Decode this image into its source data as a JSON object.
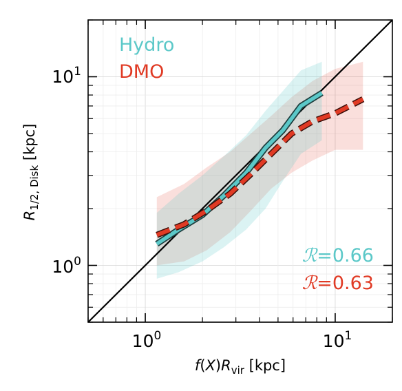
{
  "chart_data": {
    "type": "line",
    "xlabel": {
      "func": "f",
      "arg": "X",
      "sym": "R",
      "sub": "vir",
      "unit": "[kpc]"
    },
    "ylabel": {
      "sym": "R",
      "sub": "1/2, Disk",
      "unit": "[kpc]"
    },
    "xscale": "log",
    "yscale": "log",
    "xlim": [
      0.5,
      20
    ],
    "ylim": [
      0.5,
      20
    ],
    "xticks": [
      {
        "base": "10",
        "exp": "0",
        "value": 1
      },
      {
        "base": "10",
        "exp": "1",
        "value": 10
      }
    ],
    "yticks": [
      {
        "base": "10",
        "exp": "0",
        "value": 1
      },
      {
        "base": "10",
        "exp": "1",
        "value": 10
      }
    ],
    "grid": true,
    "legend": {
      "placement": "top-left",
      "entries": [
        {
          "label": "Hydro",
          "color": "#5bc8c8"
        },
        {
          "label": "DMO",
          "color": "#e03a24"
        }
      ]
    },
    "one_to_one_line": true,
    "series": [
      {
        "name": "Hydro",
        "color": "#5bc8c8",
        "style": "solid",
        "x": [
          1.15,
          1.5,
          2.0,
          2.6,
          3.4,
          4.3,
          5.3,
          6.6,
          8.5
        ],
        "y": [
          1.3,
          1.55,
          1.85,
          2.35,
          3.1,
          4.2,
          5.2,
          7.0,
          8.2
        ],
        "band_lower": [
          0.85,
          0.92,
          1.05,
          1.25,
          1.55,
          2.0,
          2.8,
          3.9,
          4.6
        ],
        "band_upper": [
          1.9,
          2.4,
          3.0,
          3.8,
          4.9,
          6.6,
          8.4,
          10.8,
          12.0
        ]
      },
      {
        "name": "DMO",
        "color": "#e03a24",
        "style": "dashed",
        "x": [
          1.15,
          1.6,
          2.1,
          2.8,
          3.6,
          4.6,
          5.9,
          7.6,
          10.0,
          14.0
        ],
        "y": [
          1.45,
          1.65,
          1.95,
          2.4,
          3.05,
          3.9,
          5.0,
          5.8,
          6.4,
          7.6
        ],
        "band_lower": [
          1.0,
          1.05,
          1.2,
          1.5,
          1.95,
          2.55,
          3.1,
          3.6,
          4.1,
          4.1
        ],
        "band_upper": [
          2.3,
          2.7,
          3.3,
          4.0,
          5.0,
          6.2,
          7.8,
          9.5,
          11.0,
          12.0
        ]
      }
    ],
    "annotations": [
      {
        "symbol": "ℛ",
        "text": "=0.66",
        "color": "#5bc8c8"
      },
      {
        "symbol": "ℛ",
        "text": "=0.63",
        "color": "#e03a24"
      }
    ]
  }
}
